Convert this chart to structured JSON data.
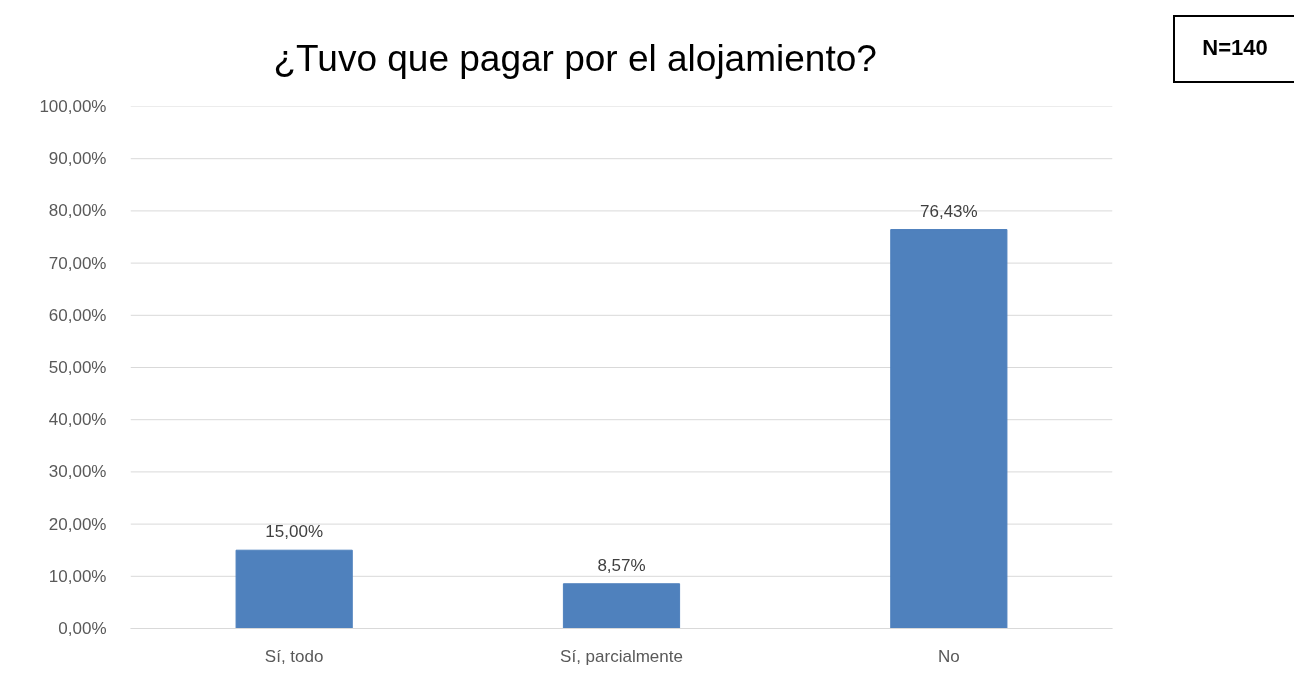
{
  "chart_data": {
    "type": "bar",
    "title": "¿Tuvo que pagar por el alojamiento?",
    "categories": [
      "Sí, todo",
      "Sí, parcialmente",
      "No"
    ],
    "values": [
      15.0,
      8.57,
      76.43
    ],
    "color": "#4f81bd",
    "value_labels": [
      "15,00%",
      "8,57%",
      "76,43%"
    ],
    "ylim": [
      0,
      100
    ],
    "yticks": [
      {
        "value": 0,
        "label": "0,00%"
      },
      {
        "value": 10,
        "label": "10,00%"
      },
      {
        "value": 20,
        "label": "20,00%"
      },
      {
        "value": 30,
        "label": "30,00%"
      },
      {
        "value": 40,
        "label": "40,00%"
      },
      {
        "value": 50,
        "label": "50,00%"
      },
      {
        "value": 60,
        "label": "60,00%"
      },
      {
        "value": 70,
        "label": "70,00%"
      },
      {
        "value": 80,
        "label": "80,00%"
      },
      {
        "value": 90,
        "label": "90,00%"
      },
      {
        "value": 100,
        "label": "100,00%"
      }
    ],
    "grid": "y",
    "annotations": [
      "N=140"
    ]
  }
}
